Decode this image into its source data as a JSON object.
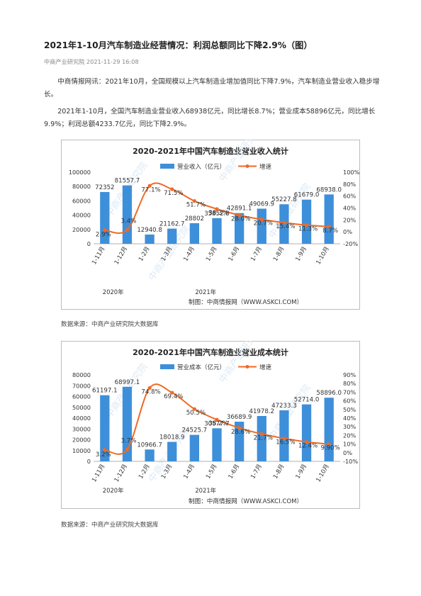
{
  "article": {
    "title": "2021年1-10月汽车制造业经营情况：利润总额同比下降2.9%（图）",
    "meta": "中商产业研究院 2021-11-29 16:08",
    "paragraph1": "中商情报网讯：2021年10月，全国规模以上汽车制造业增加值同比下降7.9%，汽车制造业营业收入稳步增长。",
    "paragraph2": "2021年1-10月，全国汽车制造业营业收入68938亿元，同比增长8.7%；营业成本58896亿元，同比增长9.9%；利润总额4233.7亿元，同比下降2.9%。",
    "source1": "数据来源：中商产业研究院大数据库",
    "source2": "数据来源：中商产业研究院大数据库"
  },
  "colors": {
    "bar": "#3e8fd9",
    "line": "#f06a24",
    "grid": "#e0e0e0"
  },
  "chart_data": [
    {
      "type": "bar",
      "title": "2020-2021年中国汽车制造业营业收入统计",
      "categories": [
        "1-11月",
        "1-12月",
        "1-2月",
        "1-3月",
        "1-4月",
        "1-5月",
        "1-6月",
        "1-7月",
        "1-8月",
        "1-9月",
        "1-10月"
      ],
      "year_labels": [
        "2020年",
        "2021年"
      ],
      "series": [
        {
          "name": "营业收入（亿元）",
          "kind": "bar",
          "axis": "left",
          "values": [
            72352,
            81557.7,
            12940.8,
            21162.7,
            28802,
            35852.8,
            42891.1,
            49069.9,
            55227.8,
            61679.0,
            68938.0
          ],
          "labels": [
            "72352",
            "81557.7",
            "12940.8",
            "21162.7",
            "28802",
            "35852.8",
            "42891.1",
            "49069.9",
            "55227.8",
            "61679.0",
            "68938.0"
          ]
        },
        {
          "name": "增速",
          "kind": "line",
          "axis": "right",
          "values": [
            2.9,
            3.4,
            77.1,
            71.5,
            51.7,
            38.3,
            28.0,
            20.7,
            15.4,
            11.3,
            8.7
          ],
          "labels": [
            "2.9%",
            "3.4%",
            "77.1%",
            "71.5%",
            "51.7%",
            "38.3%",
            "28.0%",
            "20.7%",
            "15.4%",
            "11.3%",
            "8.7%"
          ]
        }
      ],
      "left_ticks": [
        "0",
        "20000",
        "40000",
        "60000",
        "80000",
        "100000"
      ],
      "right_ticks": [
        "-20%",
        "0%",
        "20%",
        "40%",
        "60%",
        "80%",
        "100%"
      ],
      "ylim_left": [
        0,
        100000
      ],
      "ylim_right": [
        -20,
        100
      ],
      "credit": "制图：中商情报网（WWW.ASKCI.COM）",
      "watermark": "中商产业研究院",
      "legend_position": "top-center"
    },
    {
      "type": "bar",
      "title": "2020-2021年中国汽车制造业营业成本统计",
      "categories": [
        "1-11月",
        "1-12月",
        "1-2月",
        "1-3月",
        "1-4月",
        "1-5月",
        "1-6月",
        "1-7月",
        "1-8月",
        "1-9月",
        "1-10月"
      ],
      "year_labels": [
        "2020年",
        "2021年"
      ],
      "series": [
        {
          "name": "营业成本（亿元）",
          "kind": "bar",
          "axis": "left",
          "values": [
            61197.1,
            68997.1,
            10966.7,
            18018.9,
            24525.7,
            30577.7,
            36689.9,
            41978.2,
            47233.3,
            52714.0,
            58896.0
          ],
          "labels": [
            "61197.1",
            "68997.1",
            "10966.7",
            "18018.9",
            "24525.7",
            "30577.7",
            "36689.9",
            "41978.2",
            "47233.3",
            "52714.0",
            "58896.0"
          ]
        },
        {
          "name": "增速",
          "kind": "line",
          "axis": "right",
          "values": [
            3.2,
            3.7,
            74.8,
            69.4,
            50.5,
            38.2,
            28.6,
            21.7,
            16.5,
            12.4,
            9.9
          ],
          "labels": [
            "3.2%",
            "3.7%",
            "74.8%",
            "69.4%",
            "50.5%",
            "38.2%",
            "28.6%",
            "21.7%",
            "16.5%",
            "12.4%",
            "9.90%"
          ]
        }
      ],
      "left_ticks": [
        "0",
        "10000",
        "20000",
        "30000",
        "40000",
        "50000",
        "60000",
        "70000",
        "80000"
      ],
      "right_ticks": [
        "-10%",
        "0%",
        "10%",
        "20%",
        "30%",
        "40%",
        "50%",
        "60%",
        "70%",
        "80%",
        "90%"
      ],
      "ylim_left": [
        0,
        80000
      ],
      "ylim_right": [
        -10,
        90
      ],
      "credit": "制图：中商情报网（WWW.ASKCI.COM）",
      "watermark": "中商产业研究院",
      "legend_position": "top-center"
    }
  ]
}
